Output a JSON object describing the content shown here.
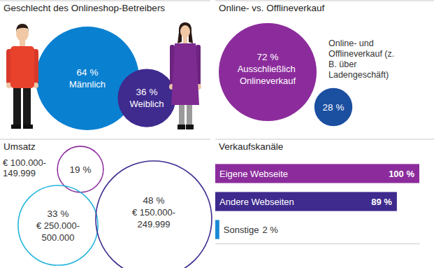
{
  "chart_data": [
    {
      "type": "bubble",
      "title": "Geschlecht des Onlineshop-Betreibers",
      "categories": [
        "Männlich",
        "Weiblich"
      ],
      "values": [
        64,
        36
      ],
      "value_labels": [
        "64 %",
        "36 %"
      ],
      "colors": [
        "#0a80d1",
        "#3f2a8e"
      ],
      "data_labels": true
    },
    {
      "type": "bubble",
      "title": "Online- vs. Offlineverkauf",
      "categories": [
        "Ausschließlich Onlineverkauf",
        "Online- und Offlineverkauf (z. B. über Ladengeschäft)"
      ],
      "values": [
        72,
        28
      ],
      "value_labels": [
        "72 %",
        "28 %"
      ],
      "colors": [
        "#8c2c9c",
        "#1b4fa0"
      ],
      "data_labels": true
    },
    {
      "type": "bubble",
      "title": "Umsatz",
      "categories": [
        "€ 100.000-149.999",
        "€ 250.000-500.000",
        "€ 150.000-249.999"
      ],
      "values": [
        19,
        33,
        48
      ],
      "value_labels": [
        "19 %",
        "33 %",
        "48 %"
      ],
      "colors": [
        "#8c2c9c",
        "#26b5dd",
        "#3f2a8e"
      ],
      "marker": "hollow",
      "data_labels": true
    },
    {
      "type": "bar",
      "orientation": "horizontal",
      "title": "Verkaufskanäle",
      "categories": [
        "Eigene Webseite",
        "Andere Webseiten",
        "Sonstige"
      ],
      "values": [
        100,
        89,
        2
      ],
      "value_labels": [
        "100 %",
        "89 %",
        "2 %"
      ],
      "colors": [
        "#8c2c9c",
        "#3f2a8e",
        "#1a8ad4"
      ],
      "xlim": [
        0,
        100
      ],
      "data_labels": true,
      "tick_labels": false
    }
  ]
}
